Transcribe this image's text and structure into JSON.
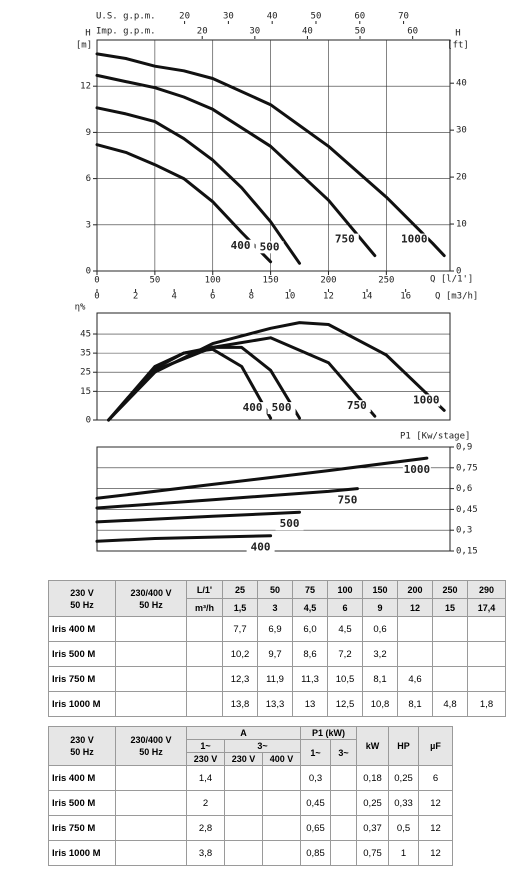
{
  "chart_data": [
    {
      "type": "line",
      "ylabel": "H",
      "yunit": "[m]",
      "y2label": "H",
      "y2unit": "[ft]",
      "xlabel": "Q [l/1']",
      "xlim": [
        0,
        305
      ],
      "xticks": [
        0,
        50,
        100,
        150,
        200,
        250
      ],
      "ylim": [
        0,
        15
      ],
      "yticks": [
        0,
        3,
        6,
        9,
        12
      ],
      "y2lim": [
        0,
        49.2
      ],
      "y2ticks": [
        0,
        10,
        20,
        30,
        40
      ],
      "secondary_x": [
        {
          "label": "Q [m3/h]",
          "lim": [
            0,
            18.3
          ],
          "ticks": [
            0,
            2,
            4,
            6,
            8,
            10,
            12,
            14,
            16
          ]
        },
        {
          "label": "U.S. g.p.m.",
          "lim": [
            0,
            80.6
          ],
          "ticks": [
            20,
            30,
            40,
            50,
            60,
            70
          ]
        },
        {
          "label": "Imp. g.p.m.",
          "lim": [
            0,
            67.1
          ],
          "ticks": [
            20,
            30,
            40,
            50,
            60
          ]
        }
      ],
      "grid": true,
      "color": "#111111",
      "series": [
        {
          "name": "400",
          "x": [
            0,
            25,
            50,
            75,
            100,
            125,
            150
          ],
          "values": [
            8.2,
            7.7,
            6.9,
            6.0,
            4.5,
            2.5,
            0.6
          ]
        },
        {
          "name": "500",
          "x": [
            0,
            25,
            50,
            75,
            100,
            125,
            150,
            175
          ],
          "values": [
            10.6,
            10.2,
            9.7,
            8.6,
            7.2,
            5.4,
            3.2,
            0.5
          ]
        },
        {
          "name": "750",
          "x": [
            0,
            25,
            50,
            75,
            100,
            150,
            200,
            240
          ],
          "values": [
            12.7,
            12.3,
            11.9,
            11.3,
            10.5,
            8.1,
            4.6,
            1.0
          ]
        },
        {
          "name": "1000",
          "x": [
            0,
            25,
            50,
            75,
            100,
            150,
            200,
            250,
            290,
            300
          ],
          "values": [
            14.1,
            13.8,
            13.3,
            13,
            12.5,
            10.8,
            8.1,
            4.8,
            1.8,
            1.0
          ]
        }
      ]
    },
    {
      "type": "line",
      "ylabel": "η%",
      "xlim": [
        0,
        305
      ],
      "ylim": [
        0,
        56
      ],
      "yticks": [
        0,
        15,
        25,
        35,
        45
      ],
      "grid": true,
      "color": "#111111",
      "series": [
        {
          "name": "400",
          "x": [
            10,
            50,
            75,
            100,
            125,
            150
          ],
          "values": [
            0,
            28,
            35,
            37,
            28,
            1
          ]
        },
        {
          "name": "500",
          "x": [
            10,
            50,
            75,
            100,
            125,
            150,
            175
          ],
          "values": [
            0,
            27,
            35,
            38,
            38,
            26,
            1
          ]
        },
        {
          "name": "750",
          "x": [
            10,
            50,
            100,
            150,
            200,
            240
          ],
          "values": [
            0,
            26,
            38,
            43,
            30,
            2
          ]
        },
        {
          "name": "1000",
          "x": [
            10,
            50,
            100,
            150,
            175,
            200,
            250,
            300
          ],
          "values": [
            0,
            25,
            40,
            48,
            51,
            50,
            34,
            5
          ]
        }
      ]
    },
    {
      "type": "line",
      "ylabel": "P1 [Kw/stage]",
      "xlim": [
        0,
        305
      ],
      "ylim": [
        0.15,
        0.9
      ],
      "yticks": [
        {
          "value": 0.9,
          "label": "0,9"
        },
        {
          "value": 0.75,
          "label": "0,75"
        },
        {
          "value": 0.6,
          "label": "0,6"
        },
        {
          "value": 0.45,
          "label": "0,45"
        },
        {
          "value": 0.3,
          "label": "0,3"
        },
        {
          "value": 0.15,
          "label": "0,15"
        }
      ],
      "grid": true,
      "color": "#111111",
      "series": [
        {
          "name": "400",
          "x": [
            0,
            50,
            100,
            150
          ],
          "values": [
            0.22,
            0.24,
            0.25,
            0.26
          ]
        },
        {
          "name": "500",
          "x": [
            0,
            50,
            100,
            150,
            175
          ],
          "values": [
            0.36,
            0.38,
            0.4,
            0.42,
            0.43
          ]
        },
        {
          "name": "750",
          "x": [
            0,
            100,
            200,
            225
          ],
          "values": [
            0.46,
            0.52,
            0.58,
            0.6
          ]
        },
        {
          "name": "1000",
          "x": [
            0,
            100,
            200,
            285
          ],
          "values": [
            0.53,
            0.63,
            0.73,
            0.82
          ]
        }
      ]
    }
  ],
  "table_1": {
    "voltage_1": [
      "230 V",
      "50 Hz"
    ],
    "voltage_3": [
      "230/400 V",
      "50 Hz"
    ],
    "flow_units": [
      "L/1'",
      "m³/h"
    ],
    "flow_lpm": [
      "25",
      "50",
      "75",
      "100",
      "150",
      "200",
      "250",
      "290"
    ],
    "flow_m3h": [
      "1,5",
      "3",
      "4,5",
      "6",
      "9",
      "12",
      "15",
      "17,4"
    ],
    "rows": [
      {
        "name": "Iris 400 M",
        "values": [
          "7,7",
          "6,9",
          "6,0",
          "4,5",
          "0,6",
          null,
          null,
          null
        ]
      },
      {
        "name": "Iris 500 M",
        "values": [
          "10,2",
          "9,7",
          "8,6",
          "7,2",
          "3,2",
          null,
          null,
          null
        ]
      },
      {
        "name": "Iris 750 M",
        "values": [
          "12,3",
          "11,9",
          "11,3",
          "10,5",
          "8,1",
          "4,6",
          null,
          null
        ]
      },
      {
        "name": "Iris 1000 M",
        "values": [
          "13,8",
          "13,3",
          "13",
          "12,5",
          "10,8",
          "8,1",
          "4,8",
          "1,8"
        ]
      }
    ]
  },
  "table_2": {
    "voltage_1": [
      "230 V",
      "50 Hz"
    ],
    "voltage_3": [
      "230/400 V",
      "50 Hz"
    ],
    "current": "A",
    "current_1ph": "1~",
    "current_3ph": "3~",
    "current_voltages": [
      "230 V",
      "230 V",
      "400 V"
    ],
    "p1": "P1 (kW)",
    "p1_phases": [
      "1~",
      "3~"
    ],
    "kw": "kW",
    "hp": "HP",
    "uf": "µF",
    "rows": [
      {
        "name": "Iris 400 M",
        "values": [
          "1,4",
          null,
          null,
          "0,3",
          null,
          "0,18",
          "0,25",
          "6"
        ]
      },
      {
        "name": "Iris 500 M",
        "values": [
          "2",
          null,
          null,
          "0,45",
          null,
          "0,25",
          "0,33",
          "12"
        ]
      },
      {
        "name": "Iris 750 M",
        "values": [
          "2,8",
          null,
          null,
          "0,65",
          null,
          "0,37",
          "0,5",
          "12"
        ]
      },
      {
        "name": "Iris 1000 M",
        "values": [
          "3,8",
          null,
          null,
          "0,85",
          null,
          "0,75",
          "1",
          "12"
        ]
      }
    ]
  }
}
